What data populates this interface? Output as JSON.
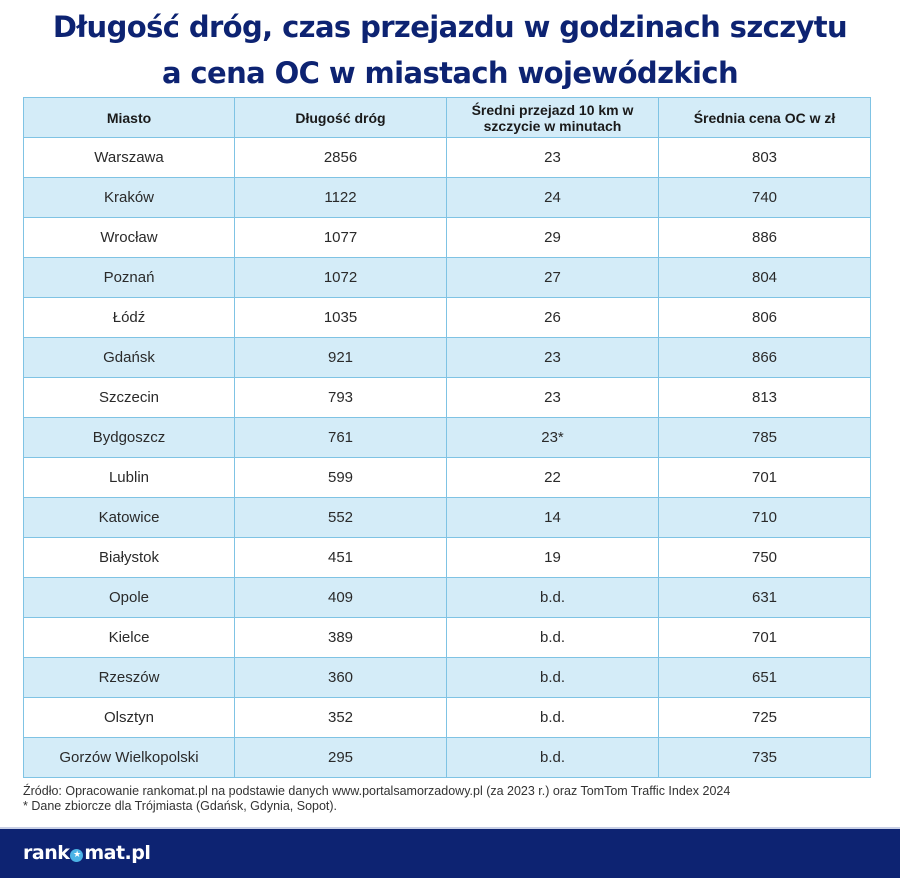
{
  "title_line1": "Długość dróg, czas przejazdu w godzinach szczytu",
  "title_line2": "a cena OC w miastach wojewódzkich",
  "chart_data": {
    "type": "table",
    "title": "Długość dróg, czas przejazdu w godzinach szczytu a cena OC w miastach wojewódzkich",
    "columns": [
      "Miasto",
      "Długość dróg",
      "Średni przejazd 10 km w szczycie w minutach",
      "Średnia cena OC w zł"
    ],
    "rows": [
      [
        "Warszawa",
        "2856",
        "23",
        "803"
      ],
      [
        "Kraków",
        "1122",
        "24",
        "740"
      ],
      [
        "Wrocław",
        "1077",
        "29",
        "886"
      ],
      [
        "Poznań",
        "1072",
        "27",
        "804"
      ],
      [
        "Łódź",
        "1035",
        "26",
        "806"
      ],
      [
        "Gdańsk",
        "921",
        "23",
        "866"
      ],
      [
        "Szczecin",
        "793",
        "23",
        "813"
      ],
      [
        "Bydgoszcz",
        "761",
        "23*",
        "785"
      ],
      [
        "Lublin",
        "599",
        "22",
        "701"
      ],
      [
        "Katowice",
        "552",
        "14",
        "710"
      ],
      [
        "Białystok",
        "451",
        "19",
        "750"
      ],
      [
        "Opole",
        "409",
        "b.d.",
        "631"
      ],
      [
        "Kielce",
        "389",
        "b.d.",
        "701"
      ],
      [
        "Rzeszów",
        "360",
        "b.d.",
        "651"
      ],
      [
        "Olsztyn",
        "352",
        "b.d.",
        "725"
      ],
      [
        "Gorzów Wielkopolski",
        "295",
        "b.d.",
        "735"
      ]
    ]
  },
  "notes": {
    "source": "Źródło: Opracowanie rankomat.pl na podstawie danych www.portalsamorzadowy.pl (za 2023 r.) oraz TomTom Traffic Index 2024",
    "footnote": "* Dane zbiorcze dla Trójmiasta (Gdańsk, Gdynia, Sopot)."
  },
  "footer": {
    "logo_left": "rank",
    "logo_star": "★",
    "logo_right": "mat.pl"
  },
  "colors": {
    "title": "#0d2372",
    "header_bg": "#d4ecf8",
    "border": "#7fc3e4",
    "footer_bg": "#0d2372",
    "logo_accent": "#4cb3e6"
  }
}
